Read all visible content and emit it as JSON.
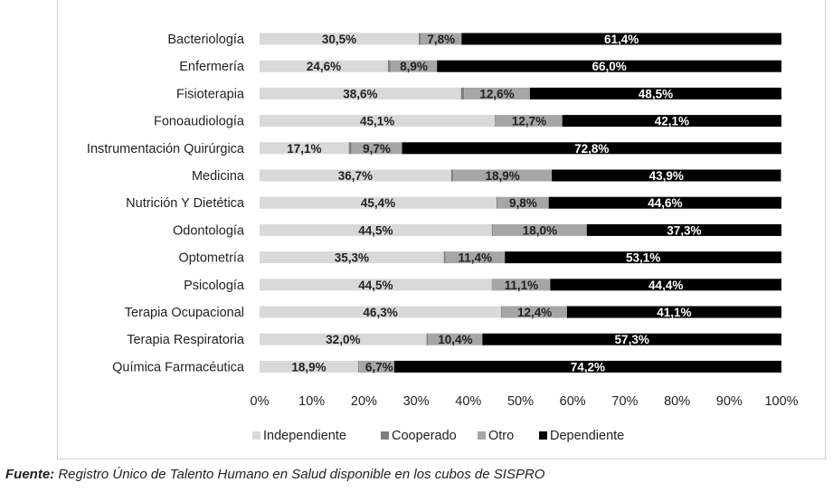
{
  "colors": {
    "Independiente": "#d9d9d9",
    "Cooperado": "#7f7f7f",
    "Otro": "#a6a6a6",
    "Dependiente": "#000000"
  },
  "chart_data": {
    "type": "bar",
    "orientation": "horizontal",
    "stacked": true,
    "categories": [
      "Bacteriología",
      "Enfermería",
      "Fisioterapia",
      "Fonoaudiología",
      "Instrumentación Quirúrgica",
      "Medicina",
      "Nutrición Y Dietética",
      "Odontología",
      "Optometría",
      "Psicología",
      "Terapia Ocupacional",
      "Terapia Respiratoria",
      "Química Farmacéutica"
    ],
    "series": [
      {
        "name": "Independiente",
        "values": [
          30.5,
          24.6,
          38.6,
          45.1,
          17.1,
          36.7,
          45.4,
          44.5,
          35.3,
          44.5,
          46.3,
          32.0,
          18.9
        ],
        "labels": [
          "30,5%",
          "24,6%",
          "38,6%",
          "45,1%",
          "17,1%",
          "36,7%",
          "45,4%",
          "44,5%",
          "35,3%",
          "44,5%",
          "46,3%",
          "32,0%",
          "18,9%"
        ]
      },
      {
        "name": "Cooperado",
        "values": [
          0.4,
          0.5,
          0.6,
          0.2,
          0.5,
          0.4,
          0.2,
          0.2,
          0.3,
          0.1,
          0.2,
          0.3,
          0.2
        ],
        "labels": [
          "",
          "",
          "",
          "",
          "",
          "",
          "",
          "",
          "",
          "",
          "",
          "",
          ""
        ]
      },
      {
        "name": "Otro",
        "values": [
          7.8,
          8.9,
          12.6,
          12.7,
          9.7,
          18.9,
          9.8,
          18.0,
          11.4,
          11.1,
          12.4,
          10.4,
          6.7
        ],
        "labels": [
          "7,8%",
          "8,9%",
          "12,6%",
          "12,7%",
          "9,7%",
          "18,9%",
          "9,8%",
          "18,0%",
          "11,4%",
          "11,1%",
          "12,4%",
          "10,4%",
          "6,7%"
        ]
      },
      {
        "name": "Dependiente",
        "values": [
          61.4,
          66.0,
          48.5,
          42.1,
          72.8,
          43.9,
          44.6,
          37.3,
          53.1,
          44.4,
          41.1,
          57.3,
          74.2
        ],
        "labels": [
          "61,4%",
          "66,0%",
          "48,5%",
          "42,1%",
          "72,8%",
          "43,9%",
          "44,6%",
          "37,3%",
          "53,1%",
          "44,4%",
          "41,1%",
          "57,3%",
          "74,2%"
        ]
      }
    ],
    "xlim": [
      0,
      100
    ],
    "xticks": [
      "0%",
      "10%",
      "20%",
      "30%",
      "40%",
      "50%",
      "60%",
      "70%",
      "80%",
      "90%",
      "100%"
    ],
    "legend": {
      "position": "bottom",
      "entries": [
        "Independiente",
        "Cooperado",
        "Otro",
        "Dependiente"
      ]
    },
    "grid": false
  },
  "source": {
    "label": "Fuente:",
    "text": " Registro Único de Talento Humano en Salud disponible en los cubos de SISPRO"
  }
}
